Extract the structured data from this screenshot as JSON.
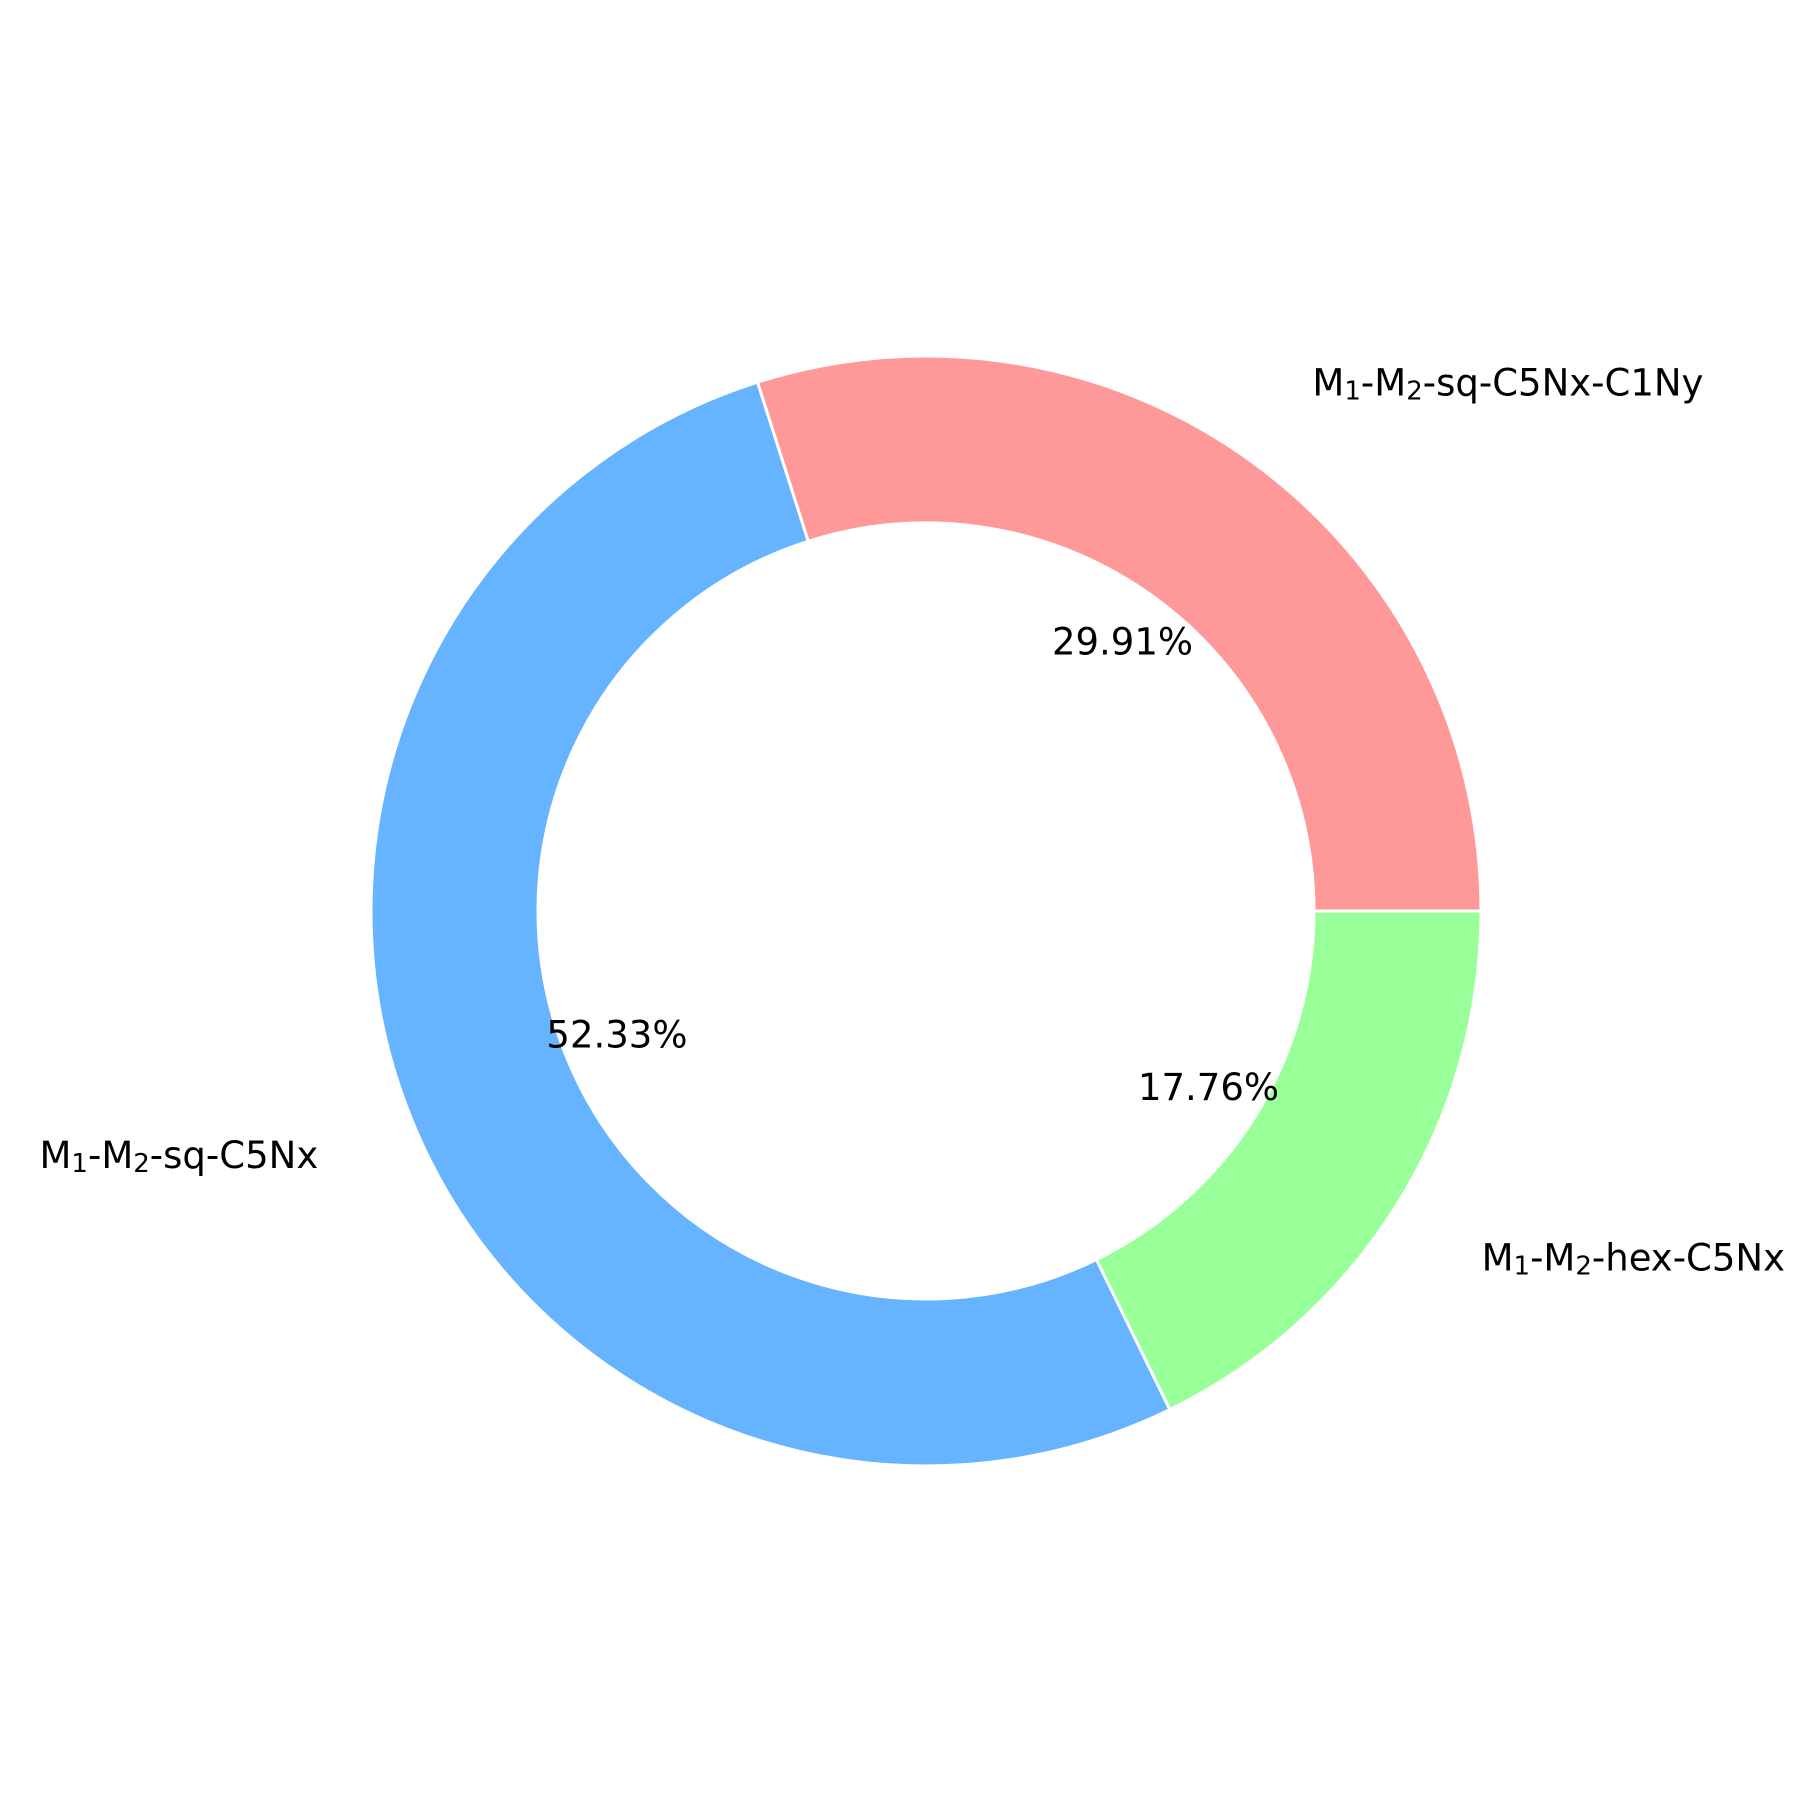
{
  "chart_data": {
    "type": "pie",
    "style": "donut",
    "title": "",
    "start_angle_deg": 0,
    "direction": "counterclockwise",
    "slices": [
      {
        "label_main": "M",
        "label_parts": [
          "M",
          "1",
          "-M",
          "2",
          "-sq-C5Nx-C1Ny"
        ],
        "value": 29.91,
        "pct_text": "29.91%",
        "color": "#ff9999"
      },
      {
        "label_main": "M",
        "label_parts": [
          "M",
          "1",
          "-M",
          "2",
          "-sq-C5Nx"
        ],
        "value": 52.33,
        "pct_text": "52.33%",
        "color": "#66b3ff"
      },
      {
        "label_main": "M",
        "label_parts": [
          "M",
          "1",
          "-M",
          "2",
          "-hex-C5Nx"
        ],
        "value": 17.76,
        "pct_text": "17.76%",
        "color": "#99ff99"
      }
    ],
    "edge_color": "#ffffff"
  }
}
